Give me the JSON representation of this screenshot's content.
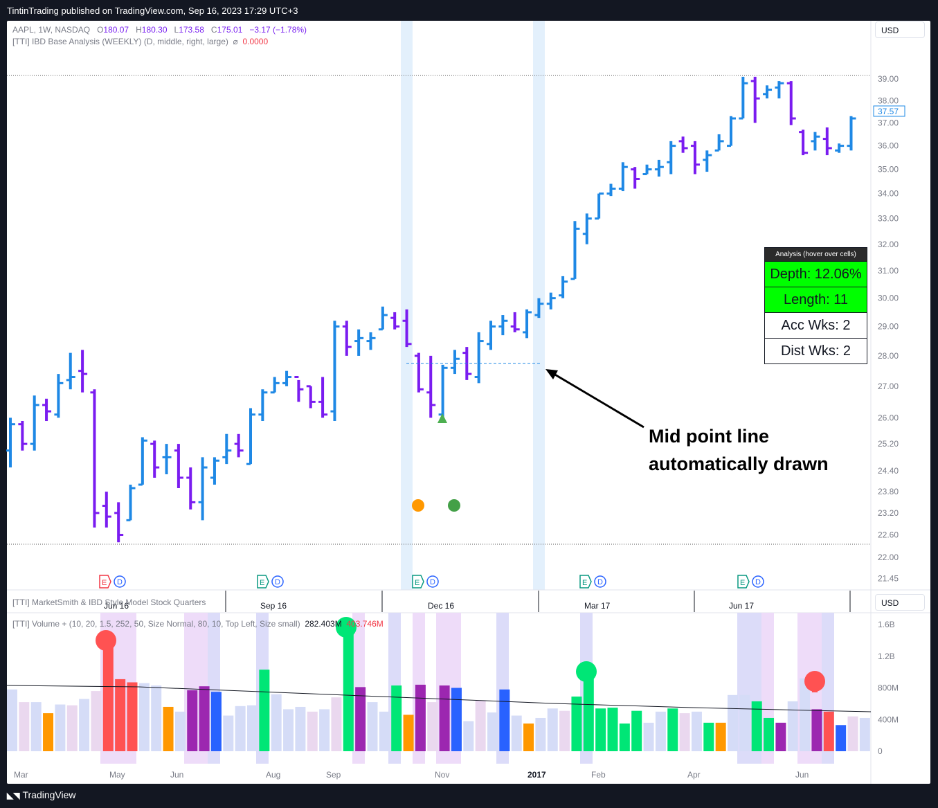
{
  "header": {
    "publish_line": "TintinTrading published on TradingView.com, Sep 16, 2023 17:29 UTC+3"
  },
  "footer": {
    "brand": "TradingView"
  },
  "legend": {
    "symbol": "AAPL, 1W, NASDAQ",
    "o_label": "O",
    "o_val": "180.07",
    "h_label": "H",
    "h_val": "180.30",
    "l_label": "L",
    "l_val": "173.58",
    "c_label": "C",
    "c_val": "175.01",
    "change": "−3.17 (−1.78%)",
    "indicator1": "[TTI] IBD Base Analysis (WEEKLY) (D, middle, right, large)",
    "indicator1_sym": "⌀",
    "indicator1_val": "0.0000",
    "indicator2": "[TTI] MarketSmith & IBD Style Model Stock Quarters",
    "indicator3": "[TTI] Volume + (10, 20, 1.5, 252, 50, Size Normal, 80, 10, Top Left, Size small)",
    "indicator3_val1": "282.403M",
    "indicator3_val2": "403.746M"
  },
  "currency": {
    "main": "USD",
    "lower": "USD"
  },
  "price_badge": "37.57",
  "annotation": {
    "line1": "Mid point line",
    "line2": "automatically drawn"
  },
  "analysis_table": {
    "header": "Analysis (hover over cells)",
    "depth": "Depth: 12.06%",
    "length": "Length: 11",
    "acc": "Acc Wks: 2",
    "dist": "Dist Wks: 2"
  },
  "colors": {
    "up": "#1e88e5",
    "down": "#7a1cf0",
    "vol_green": "#00e676",
    "vol_red": "#ff5252",
    "vol_purple": "#9c27b0",
    "vol_blue": "#2962ff",
    "vol_orange": "#ff9800",
    "vol_light": "#d5dcf7",
    "vol_pink": "#ead8ef",
    "shade": "#e3f0fc",
    "triangle": "#4caf50",
    "dot_orange": "#ff9800",
    "dot_green": "#43a047"
  },
  "chart_data": [
    {
      "type": "ohlc",
      "title": "AAPL, 1W, NASDAQ",
      "y_axis_ticks": [
        "39.00",
        "38.00",
        "37.00",
        "36.00",
        "35.00",
        "34.00",
        "33.00",
        "32.00",
        "31.00",
        "30.00",
        "29.00",
        "28.00",
        "27.00",
        "26.00",
        "25.20",
        "24.40",
        "23.80",
        "23.20",
        "22.60",
        "22.00",
        "21.45"
      ],
      "y_scale": "log",
      "x_axis_labels": [
        "Jun 16",
        "Sep 16",
        "Dec 16",
        "Mar 17",
        "Jun 17"
      ],
      "bars": [
        [
          25.0,
          26.0,
          24.5,
          25.8
        ],
        [
          25.8,
          25.9,
          25.0,
          25.2
        ],
        [
          25.2,
          26.7,
          25.0,
          26.4
        ],
        [
          26.4,
          26.6,
          25.9,
          26.2
        ],
        [
          26.1,
          27.4,
          26.0,
          27.1
        ],
        [
          27.2,
          28.1,
          26.9,
          27.3
        ],
        [
          27.5,
          28.2,
          26.8,
          27.4
        ],
        [
          26.8,
          26.9,
          22.8,
          23.2
        ],
        [
          23.4,
          23.8,
          22.8,
          23.1
        ],
        [
          23.2,
          23.5,
          22.4,
          22.6
        ],
        [
          23.0,
          24.0,
          23.0,
          23.9
        ],
        [
          24.0,
          25.4,
          24.0,
          25.3
        ],
        [
          25.2,
          25.3,
          24.2,
          24.5
        ],
        [
          24.8,
          25.2,
          24.3,
          24.8
        ],
        [
          25.0,
          25.2,
          23.9,
          24.2
        ],
        [
          24.2,
          24.5,
          23.3,
          23.5
        ],
        [
          23.5,
          24.8,
          23.0,
          24.5
        ],
        [
          24.2,
          24.8,
          24.0,
          24.7
        ],
        [
          24.8,
          25.5,
          24.6,
          25.0
        ],
        [
          25.2,
          25.5,
          24.8,
          25.0
        ],
        [
          24.6,
          26.3,
          24.6,
          26.1
        ],
        [
          26.1,
          26.9,
          25.9,
          26.8
        ],
        [
          26.8,
          27.3,
          26.8,
          27.1
        ],
        [
          27.1,
          27.5,
          27.0,
          27.3
        ],
        [
          27.3,
          27.2,
          26.5,
          26.9
        ],
        [
          27.0,
          27.0,
          26.3,
          26.5
        ],
        [
          26.5,
          27.3,
          26.0,
          26.1
        ],
        [
          26.2,
          29.2,
          25.9,
          29.0
        ],
        [
          29.0,
          29.2,
          28.0,
          28.3
        ],
        [
          28.5,
          28.9,
          28.0,
          28.6
        ],
        [
          28.5,
          28.8,
          28.2,
          28.6
        ],
        [
          28.9,
          29.7,
          28.9,
          29.4
        ],
        [
          29.3,
          29.5,
          28.9,
          29.0
        ],
        [
          29.2,
          29.6,
          28.3,
          28.4
        ],
        [
          28.0,
          28.1,
          26.8,
          26.9
        ],
        [
          26.8,
          28.0,
          26.0,
          26.4
        ],
        [
          26.1,
          27.7,
          26.0,
          27.6
        ],
        [
          27.6,
          28.2,
          27.4,
          27.9
        ],
        [
          28.1,
          28.3,
          27.2,
          27.4
        ],
        [
          27.3,
          28.8,
          27.1,
          28.5
        ],
        [
          28.4,
          29.2,
          28.2,
          29.0
        ],
        [
          29.0,
          29.4,
          28.7,
          29.2
        ],
        [
          29.0,
          29.5,
          28.8,
          28.9
        ],
        [
          28.8,
          29.6,
          28.6,
          29.5
        ],
        [
          29.4,
          30.0,
          29.3,
          29.8
        ],
        [
          29.8,
          30.2,
          29.6,
          30.0
        ],
        [
          30.1,
          30.8,
          30.0,
          30.6
        ],
        [
          30.7,
          32.9,
          30.7,
          32.6
        ],
        [
          32.4,
          33.2,
          32.0,
          33.0
        ],
        [
          33.0,
          34.0,
          33.0,
          34.0
        ],
        [
          34.0,
          34.4,
          33.9,
          34.2
        ],
        [
          34.2,
          35.3,
          34.1,
          35.1
        ],
        [
          35.0,
          35.1,
          34.2,
          34.6
        ],
        [
          34.8,
          35.2,
          34.8,
          35.0
        ],
        [
          35.0,
          35.4,
          34.7,
          35.1
        ],
        [
          35.3,
          36.2,
          34.8,
          36.0
        ],
        [
          36.2,
          36.4,
          35.7,
          35.9
        ],
        [
          36.0,
          36.2,
          34.8,
          35.2
        ],
        [
          35.4,
          35.8,
          34.9,
          35.6
        ],
        [
          35.8,
          36.5,
          35.8,
          36.2
        ],
        [
          36.0,
          37.3,
          36.0,
          37.2
        ],
        [
          37.2,
          39.1,
          37.2,
          38.8
        ],
        [
          38.9,
          39.1,
          37.0,
          38.1
        ],
        [
          38.3,
          38.7,
          38.1,
          38.5
        ],
        [
          38.6,
          38.9,
          38.1,
          38.8
        ],
        [
          38.8,
          38.9,
          36.9,
          37.2
        ],
        [
          36.6,
          36.7,
          35.6,
          35.7
        ],
        [
          36.2,
          36.6,
          35.8,
          36.4
        ],
        [
          36.3,
          36.8,
          35.6,
          35.9
        ],
        [
          35.8,
          36.1,
          35.7,
          36.0
        ],
        [
          36.0,
          37.3,
          35.8,
          37.2
        ]
      ],
      "base_midpoint": 27.75,
      "markers": [
        "triangle-up at Dec 16 low",
        "orange dot",
        "green dot"
      ],
      "earnings_flags": [
        "E",
        "D"
      ]
    },
    {
      "type": "bar",
      "title": "[TTI] Volume +",
      "y_axis_ticks": [
        "1.6B",
        "1.2B",
        "800M",
        "400M",
        "0"
      ],
      "x_axis_labels": [
        "Mar",
        "May",
        "Jun",
        "Aug",
        "Sep",
        "Nov",
        "2017",
        "Feb",
        "Apr",
        "Jun"
      ],
      "unit": "M",
      "values": [
        780,
        620,
        620,
        480,
        590,
        580,
        660,
        760,
        1360,
        910,
        870,
        860,
        830,
        560,
        500,
        770,
        820,
        750,
        450,
        570,
        580,
        1030,
        720,
        530,
        560,
        500,
        530,
        680,
        1660,
        810,
        620,
        500,
        830,
        460,
        840,
        620,
        830,
        800,
        380,
        640,
        490,
        780,
        450,
        350,
        420,
        540,
        510,
        690,
        1080,
        540,
        550,
        350,
        510,
        360,
        500,
        540,
        480,
        500,
        360,
        360,
        710,
        710,
        630,
        420,
        360,
        630,
        920,
        530,
        500,
        330,
        440,
        420
      ],
      "colors_by_type": [
        "light",
        "pink",
        "light",
        "orange",
        "light",
        "pink",
        "light",
        "pink",
        "red",
        "red",
        "red",
        "light",
        "light",
        "orange",
        "light",
        "purple",
        "purple",
        "blue",
        "light",
        "light",
        "light",
        "green",
        "light",
        "light",
        "light",
        "pink",
        "light",
        "pink",
        "green",
        "purple",
        "light",
        "light",
        "green",
        "orange",
        "purple",
        "pink",
        "purple",
        "blue",
        "light",
        "pink",
        "light",
        "blue",
        "light",
        "orange",
        "light",
        "light",
        "pink",
        "green",
        "green",
        "green",
        "green",
        "green",
        "green",
        "light",
        "light",
        "green",
        "pink",
        "light",
        "green",
        "orange",
        "light",
        "light",
        "green",
        "green",
        "purple",
        "light",
        "light",
        "purple",
        "red",
        "blue",
        "pink",
        "light"
      ],
      "moving_average": "approx 790M declining to 500M"
    }
  ]
}
